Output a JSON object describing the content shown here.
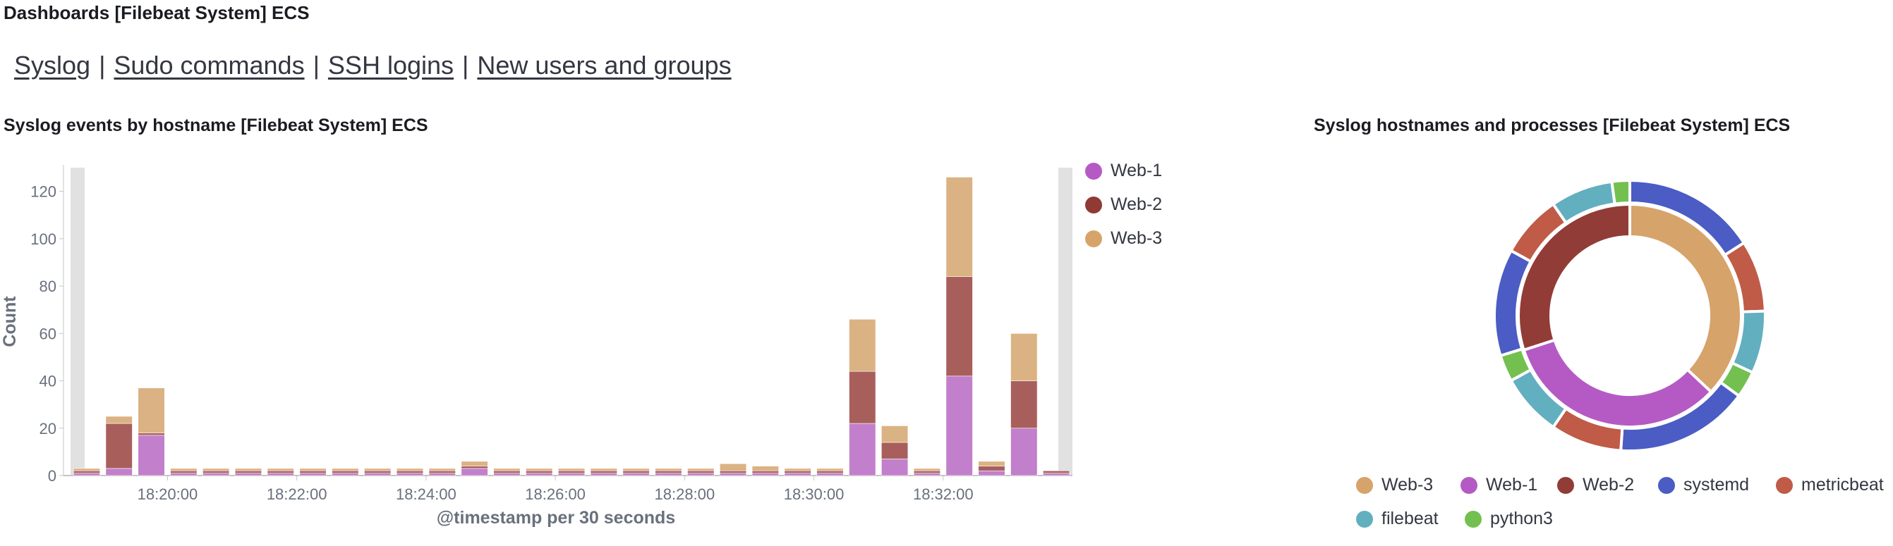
{
  "page": {
    "breadcrumb": "Dashboards [Filebeat System] ECS"
  },
  "nav": {
    "links": [
      "Syslog",
      "Sudo commands",
      "SSH logins",
      "New users and groups"
    ]
  },
  "panels": {
    "bar_title": "Syslog events by hostname [Filebeat System] ECS",
    "pie_title": "Syslog hostnames and processes [Filebeat System] ECS"
  },
  "colors": {
    "web1": "#c27fcb",
    "web2": "#a85f5c",
    "web3": "#dbb283",
    "web1_dot": "#b55ac4",
    "web2_dot": "#8f3a33",
    "web3_dot": "#d6a46a",
    "systemd": "#4b5cc4",
    "metricbeat": "#bf5b47",
    "filebeat": "#62afbf",
    "python3": "#73c050",
    "donut_web3": "#d6a36a",
    "donut_web1": "#b55ac4",
    "donut_web2": "#913c36"
  },
  "chart_data": [
    {
      "type": "bar",
      "stacked": true,
      "xlabel": "@timestamp per 30 seconds",
      "ylabel": "Count",
      "ylim": [
        0,
        130
      ],
      "yticks": [
        0,
        20,
        40,
        60,
        80,
        100,
        120
      ],
      "xticks": [
        "18:20:00",
        "18:22:00",
        "18:24:00",
        "18:26:00",
        "18:28:00",
        "18:30:00",
        "18:32:00"
      ],
      "legend_position": "right",
      "series": [
        {
          "name": "Web-1",
          "values": [
            1,
            3,
            17,
            1,
            1,
            1,
            1,
            1,
            1,
            1,
            1,
            1,
            3,
            1,
            1,
            1,
            1,
            1,
            1,
            1,
            1,
            1,
            1,
            1,
            22,
            7,
            1,
            42,
            2,
            20,
            1
          ]
        },
        {
          "name": "Web-2",
          "values": [
            1,
            19,
            1,
            1,
            1,
            1,
            1,
            1,
            1,
            1,
            1,
            1,
            1,
            1,
            1,
            1,
            1,
            1,
            1,
            1,
            1,
            1,
            1,
            1,
            22,
            7,
            1,
            42,
            2,
            20,
            1
          ]
        },
        {
          "name": "Web-3",
          "values": [
            1,
            3,
            19,
            1,
            1,
            1,
            1,
            1,
            1,
            1,
            1,
            1,
            2,
            1,
            1,
            1,
            1,
            1,
            1,
            1,
            3,
            2,
            1,
            1,
            22,
            7,
            1,
            42,
            2,
            20,
            0
          ]
        }
      ]
    },
    {
      "type": "pie",
      "donut": true,
      "inner_ring": [
        {
          "name": "Web-3",
          "value": 37
        },
        {
          "name": "Web-1",
          "value": 33
        },
        {
          "name": "Web-2",
          "value": 30
        }
      ],
      "outer_ring": [
        {
          "name": "systemd",
          "value": 15
        },
        {
          "name": "metricbeat",
          "value": 8
        },
        {
          "name": "filebeat",
          "value": 7
        },
        {
          "name": "python3",
          "value": 3
        },
        {
          "name": "systemd",
          "value": 15
        },
        {
          "name": "metricbeat",
          "value": 8
        },
        {
          "name": "filebeat",
          "value": 7
        },
        {
          "name": "python3",
          "value": 3
        },
        {
          "name": "systemd",
          "value": 12
        },
        {
          "name": "metricbeat",
          "value": 7
        },
        {
          "name": "filebeat",
          "value": 7
        },
        {
          "name": "python3",
          "value": 2
        }
      ],
      "legend": [
        "Web-3",
        "Web-1",
        "Web-2",
        "systemd",
        "metricbeat",
        "filebeat",
        "python3"
      ],
      "legend_position": "bottom"
    }
  ]
}
